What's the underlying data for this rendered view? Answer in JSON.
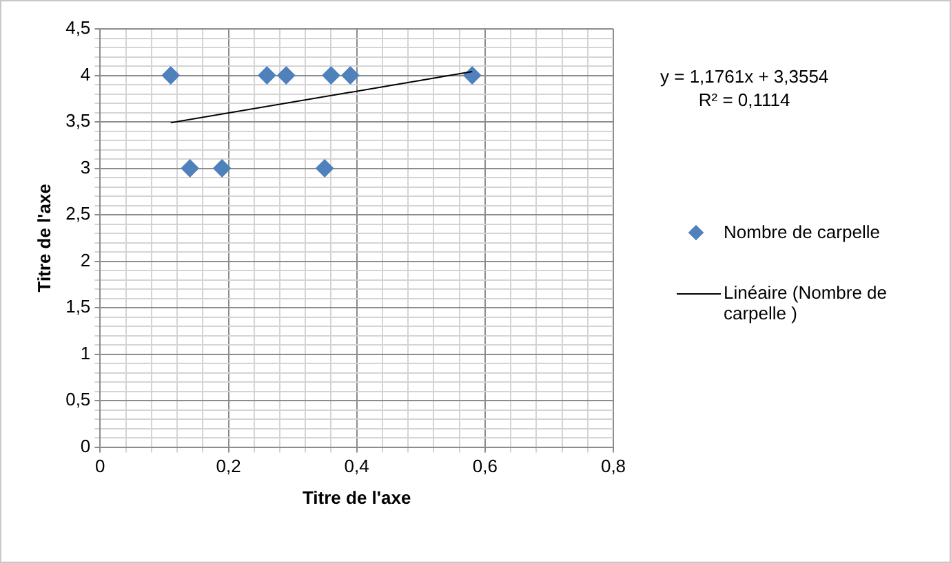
{
  "chart_data": {
    "type": "scatter",
    "xlabel": "Titre de l'axe",
    "ylabel": "Titre de l'axe",
    "xlim": [
      0,
      0.8
    ],
    "xticks": [
      0,
      {
        "value": 0.04,
        "label": null
      },
      {
        "value": 0.08,
        "label": null
      },
      {
        "value": 0.12,
        "label": null
      },
      {
        "value": 0.16,
        "label": null
      },
      {
        "value": 0.2,
        "label": "0,2"
      },
      {
        "value": 0.24,
        "label": null
      },
      {
        "value": 0.28,
        "label": null
      },
      {
        "value": 0.32,
        "label": null
      },
      {
        "value": 0.36,
        "label": null
      },
      {
        "value": 0.4,
        "label": "0,4"
      },
      {
        "value": 0.44,
        "label": null
      },
      {
        "value": 0.48,
        "label": null
      },
      {
        "value": 0.52,
        "label": null
      },
      {
        "value": 0.56,
        "label": null
      },
      {
        "value": 0.6,
        "label": "0,6"
      },
      {
        "value": 0.64,
        "label": null
      },
      {
        "value": 0.68,
        "label": null
      },
      {
        "value": 0.72,
        "label": null
      },
      {
        "value": 0.76,
        "label": null
      },
      {
        "value": 0.8,
        "label": "0,8"
      }
    ],
    "ylim": [
      0,
      4.5
    ],
    "yticks": [
      0,
      {
        "value": 0.1,
        "label": null
      },
      {
        "value": 0.2,
        "label": null
      },
      {
        "value": 0.3,
        "label": null
      },
      {
        "value": 0.4,
        "label": null
      },
      {
        "value": 0.5,
        "label": "0,5"
      },
      {
        "value": 0.6,
        "label": null
      },
      {
        "value": 0.7,
        "label": null
      },
      {
        "value": 0.8,
        "label": null
      },
      {
        "value": 0.9,
        "label": null
      },
      1,
      {
        "value": 1.1,
        "label": null
      },
      {
        "value": 1.2,
        "label": null
      },
      {
        "value": 1.3,
        "label": null
      },
      {
        "value": 1.4,
        "label": null
      },
      {
        "value": 1.5,
        "label": "1,5"
      },
      {
        "value": 1.6,
        "label": null
      },
      {
        "value": 1.7,
        "label": null
      },
      {
        "value": 1.8,
        "label": null
      },
      {
        "value": 1.9,
        "label": null
      },
      2,
      {
        "value": 2.1,
        "label": null
      },
      {
        "value": 2.2,
        "label": null
      },
      {
        "value": 2.3,
        "label": null
      },
      {
        "value": 2.4,
        "label": null
      },
      {
        "value": 2.5,
        "label": "2,5"
      },
      {
        "value": 2.6,
        "label": null
      },
      {
        "value": 2.7,
        "label": null
      },
      {
        "value": 2.8,
        "label": null
      },
      {
        "value": 2.9,
        "label": null
      },
      3,
      {
        "value": 3.1,
        "label": null
      },
      {
        "value": 3.2,
        "label": null
      },
      {
        "value": 3.3,
        "label": null
      },
      {
        "value": 3.4,
        "label": null
      },
      {
        "value": 3.5,
        "label": "3,5"
      },
      {
        "value": 3.6,
        "label": null
      },
      {
        "value": 3.7,
        "label": null
      },
      {
        "value": 3.8,
        "label": null
      },
      {
        "value": 3.9,
        "label": null
      },
      4,
      {
        "value": 4.1,
        "label": null
      },
      {
        "value": 4.2,
        "label": null
      },
      {
        "value": 4.3,
        "label": null
      },
      {
        "value": 4.4,
        "label": null
      },
      {
        "value": 4.5,
        "label": "4,5"
      }
    ],
    "grid": true,
    "legend": "right",
    "annotations": [
      "y = 1,1761x + 3,3554",
      "R² = 0,1114"
    ],
    "series": [
      {
        "name": "Nombre de carpelle",
        "marker": "diamond",
        "color": "#4f81bd",
        "x": [
          0.11,
          0.14,
          0.19,
          0.26,
          0.29,
          0.35,
          0.36,
          0.39,
          0.58
        ],
        "values": [
          4,
          3,
          3,
          4,
          4,
          3,
          4,
          4,
          4
        ]
      },
      {
        "name": "Linéaire (Nombre de carpelle )",
        "type": "line",
        "marker": "none",
        "line_style": "solid",
        "color": "#000000",
        "x": [
          0.11,
          0.58
        ],
        "values": [
          3.49,
          4.04
        ]
      }
    ]
  }
}
